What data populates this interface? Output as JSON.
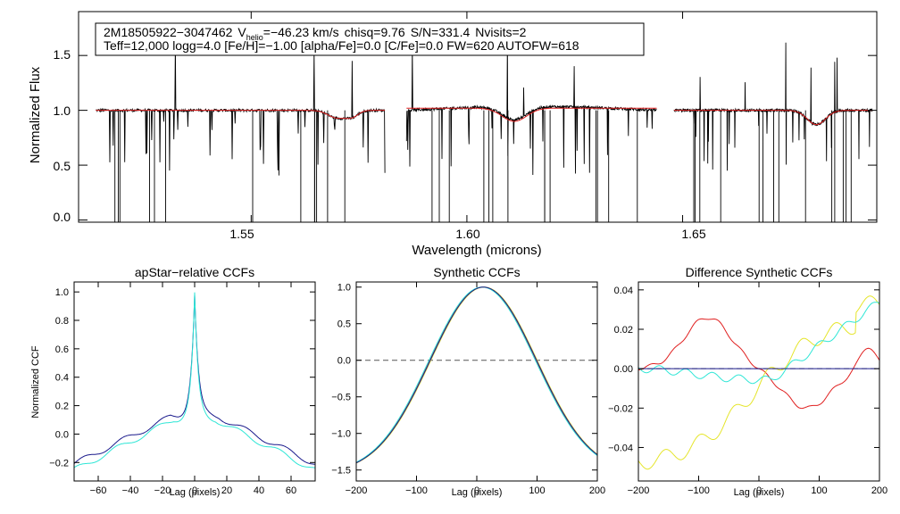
{
  "chart_data": [
    {
      "type": "line",
      "id": "spectrum",
      "xlabel": "Wavelength (microns)",
      "ylabel": "Normalized Flux",
      "xlim": [
        1.51,
        1.695
      ],
      "ylim": [
        -0.02,
        1.9
      ],
      "xticks": [
        "1.55",
        "1.60",
        "1.65"
      ],
      "yticks": [
        "0.0",
        "0.5",
        "1.0",
        "1.5"
      ],
      "info_line1": {
        "star": "2M18505922−3047462",
        "vhelio_label": "V",
        "vhelio_sub": "helio",
        "vhelio_value": "=−46.23 km/s",
        "chisq": "chisq=9.76",
        "snr": "S/N=331.4",
        "nvisits": "Nvisits=2"
      },
      "info_line2": "Teff=12,000 logg=4.0 [Fe/H]=−1.00 [alpha/Fe]=0.0 [C/Fe]=0.0 FW=620 AUTOFW=618",
      "chips": [
        [
          1.514,
          1.581
        ],
        [
          1.586,
          1.644
        ],
        [
          1.648,
          1.694
        ]
      ],
      "series": [
        {
          "name": "observed",
          "color": "#000000"
        },
        {
          "name": "model",
          "color": "#e02020"
        }
      ]
    },
    {
      "type": "line",
      "id": "apstar-ccf",
      "title": "apStar−relative CCFs",
      "xlabel": "Lag (pixels)",
      "ylabel": "Normalized CCF",
      "xlim": [
        -75,
        75
      ],
      "ylim": [
        -0.33,
        1.07
      ],
      "xticks": [
        "−60",
        "−40",
        "−20",
        "0",
        "20",
        "40",
        "60"
      ],
      "yticks": [
        "−0.2",
        "0.0",
        "0.2",
        "0.4",
        "0.6",
        "0.8",
        "1.0"
      ],
      "series": [
        {
          "name": "visit-1",
          "color": "#1a1a8c"
        },
        {
          "name": "visit-2",
          "color": "#2ee6d6"
        }
      ]
    },
    {
      "type": "line",
      "id": "synthetic-ccf",
      "title": "Synthetic CCFs",
      "xlabel": "Lag (pixels)",
      "xlim": [
        -200,
        200
      ],
      "ylim": [
        -1.65,
        1.07
      ],
      "xticks": [
        "−200",
        "−100",
        "0",
        "100",
        "200"
      ],
      "yticks": [
        "−1.5",
        "−1.0",
        "−0.5",
        "0.0",
        "0.5",
        "1.0"
      ],
      "zero_line": 0.0,
      "series": [
        {
          "name": "red",
          "color": "#e02020"
        },
        {
          "name": "yellow",
          "color": "#e5e52a"
        },
        {
          "name": "cyan",
          "color": "#2ee6d6"
        },
        {
          "name": "navy",
          "color": "#1a1a8c"
        }
      ]
    },
    {
      "type": "line",
      "id": "difference-ccf",
      "title": "Difference Synthetic CCFs",
      "xlabel": "Lag (pixels)",
      "xlim": [
        -200,
        200
      ],
      "ylim": [
        -0.057,
        0.044
      ],
      "xticks": [
        "−200",
        "−100",
        "0",
        "100",
        "200"
      ],
      "yticks": [
        "−0.04",
        "−0.02",
        "0.00",
        "0.02",
        "0.04"
      ],
      "zero_line": 0.0,
      "series": [
        {
          "name": "red",
          "color": "#e02020"
        },
        {
          "name": "yellow",
          "color": "#e5e52a"
        },
        {
          "name": "cyan",
          "color": "#2ee6d6"
        },
        {
          "name": "navy",
          "color": "#1a1a8c"
        }
      ]
    }
  ]
}
